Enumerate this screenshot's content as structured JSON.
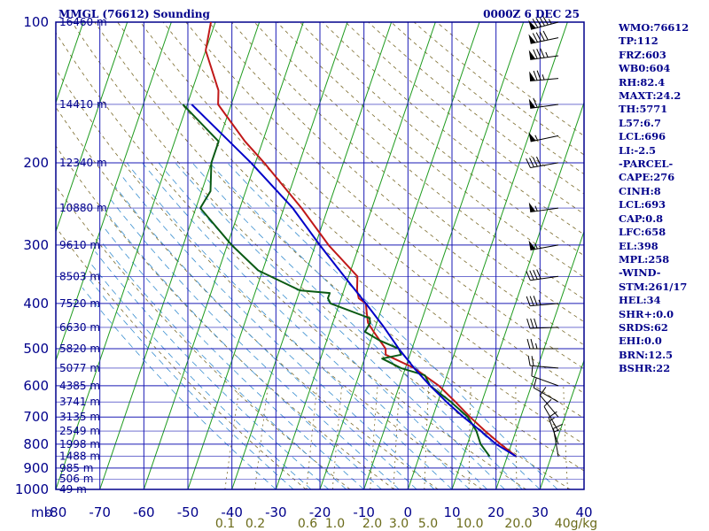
{
  "header": {
    "station": "MMGL (76612) Sounding",
    "time": "0000Z  6 DEC 25"
  },
  "indices": [
    "WMO:76612",
    "TP:112",
    "FRZ:603",
    "WB0:604",
    "RH:82.4",
    "MAXT:24.2",
    "TH:5771",
    "L57:6.7",
    "LCL:696",
    "LI:-2.5",
    "-PARCEL-",
    "CAPE:276",
    "CINH:8",
    "LCL:693",
    "CAP:0.8",
    "LFC:658",
    "EL:398",
    "MPL:258",
    "-WIND-",
    "STM:261/17",
    "HEL:34",
    "SHR+:0.0",
    "SRDS:62",
    "EHI:0.0",
    "BRN:12.5",
    "BSHR:22"
  ],
  "chart_data": {
    "type": "line",
    "title": "MMGL (76612) Sounding",
    "x_axis": {
      "unit_label": "mb",
      "ticks": [
        -80,
        -70,
        -60,
        -50,
        -40,
        -30,
        -20,
        -10,
        0,
        10,
        20,
        30,
        40
      ],
      "tick_labels": [
        "-80",
        "-70",
        "-60",
        "-50",
        "-40",
        "-30",
        "-20",
        "-10",
        "0",
        "10",
        "20",
        "30",
        "40"
      ],
      "range": [
        -80,
        40
      ]
    },
    "y_axis": {
      "scale": "log",
      "range": [
        1000,
        100
      ],
      "ticks": [
        100,
        200,
        300,
        400,
        500,
        600,
        700,
        800,
        900,
        1000
      ],
      "tick_labels": [
        "100",
        "200",
        "300",
        "400",
        "500",
        "600",
        "700",
        "800",
        "900",
        "1000"
      ]
    },
    "height_labels": [
      {
        "p": 100,
        "label": "16460 m"
      },
      {
        "p": 150,
        "label": "14410 m"
      },
      {
        "p": 200,
        "label": "12340 m"
      },
      {
        "p": 250,
        "label": "10880 m"
      },
      {
        "p": 300,
        "label": "9610 m"
      },
      {
        "p": 350,
        "label": "8503 m"
      },
      {
        "p": 400,
        "label": "7520 m"
      },
      {
        "p": 450,
        "label": "6630 m"
      },
      {
        "p": 500,
        "label": "5820 m"
      },
      {
        "p": 550,
        "label": "5077 m"
      },
      {
        "p": 600,
        "label": "4385 m"
      },
      {
        "p": 650,
        "label": "3741 m"
      },
      {
        "p": 700,
        "label": "3135 m"
      },
      {
        "p": 750,
        "label": "2549 m"
      },
      {
        "p": 800,
        "label": "1998 m"
      },
      {
        "p": 850,
        "label": "1488 m"
      },
      {
        "p": 900,
        "label": "985 m"
      },
      {
        "p": 950,
        "label": "506 m"
      },
      {
        "p": 1000,
        "label": "49 m"
      }
    ],
    "mixing_ratio_labels": [
      "0.1",
      "0.2",
      "0.6",
      "1.0",
      "2.0",
      "3.0",
      "5.0",
      "10.0",
      "20.0",
      "40g/kg"
    ],
    "series": [
      {
        "kind": "temperature",
        "color": "#c01818",
        "points": [
          [
            100,
            -81
          ],
          [
            115,
            -80
          ],
          [
            140,
            -74
          ],
          [
            150,
            -73
          ],
          [
            180,
            -64
          ],
          [
            200,
            -58
          ],
          [
            250,
            -46
          ],
          [
            300,
            -37
          ],
          [
            350,
            -28
          ],
          [
            375,
            -27
          ],
          [
            390,
            -26
          ],
          [
            400,
            -24
          ],
          [
            420,
            -23
          ],
          [
            440,
            -22
          ],
          [
            460,
            -20
          ],
          [
            500,
            -16
          ],
          [
            515,
            -15.5
          ],
          [
            550,
            -8
          ],
          [
            600,
            -1
          ],
          [
            650,
            4
          ],
          [
            700,
            8.5
          ],
          [
            750,
            13
          ],
          [
            800,
            17.5
          ],
          [
            850,
            22
          ]
        ]
      },
      {
        "kind": "dewpoint",
        "color": "#0a5a14",
        "points": [
          [
            150,
            -81
          ],
          [
            180,
            -70
          ],
          [
            200,
            -70
          ],
          [
            230,
            -68
          ],
          [
            250,
            -69
          ],
          [
            300,
            -59
          ],
          [
            340,
            -51
          ],
          [
            375,
            -40
          ],
          [
            380,
            -33
          ],
          [
            390,
            -33
          ],
          [
            400,
            -32
          ],
          [
            430,
            -22
          ],
          [
            440,
            -21.5
          ],
          [
            460,
            -22
          ],
          [
            480,
            -18
          ],
          [
            500,
            -13
          ],
          [
            515,
            -12
          ],
          [
            525,
            -16
          ],
          [
            550,
            -11
          ],
          [
            570,
            -5
          ],
          [
            600,
            -3
          ],
          [
            650,
            3
          ],
          [
            700,
            8
          ],
          [
            750,
            11
          ],
          [
            800,
            13
          ],
          [
            850,
            16
          ]
        ]
      },
      {
        "kind": "parcel",
        "color": "#0000c8",
        "points": [
          [
            150,
            -79
          ],
          [
            200,
            -61
          ],
          [
            250,
            -48
          ],
          [
            300,
            -39
          ],
          [
            350,
            -31
          ],
          [
            400,
            -24
          ],
          [
            450,
            -18
          ],
          [
            500,
            -13
          ],
          [
            550,
            -8
          ],
          [
            600,
            -3
          ],
          [
            650,
            2
          ],
          [
            700,
            7
          ],
          [
            750,
            12
          ],
          [
            800,
            16.5
          ],
          [
            850,
            22
          ]
        ]
      }
    ],
    "wind_barbs": [
      {
        "p": 100,
        "dir": 255,
        "spd": 95
      },
      {
        "p": 108,
        "dir": 258,
        "spd": 90
      },
      {
        "p": 118,
        "dir": 262,
        "spd": 85
      },
      {
        "p": 132,
        "dir": 265,
        "spd": 75
      },
      {
        "p": 150,
        "dir": 262,
        "spd": 60
      },
      {
        "p": 175,
        "dir": 258,
        "spd": 55
      },
      {
        "p": 200,
        "dir": 260,
        "spd": 40
      },
      {
        "p": 250,
        "dir": 262,
        "spd": 55
      },
      {
        "p": 300,
        "dir": 260,
        "spd": 55
      },
      {
        "p": 350,
        "dir": 262,
        "spd": 40
      },
      {
        "p": 400,
        "dir": 265,
        "spd": 35
      },
      {
        "p": 450,
        "dir": 268,
        "spd": 30
      },
      {
        "p": 500,
        "dir": 270,
        "spd": 25
      },
      {
        "p": 550,
        "dir": 275,
        "spd": 20
      },
      {
        "p": 600,
        "dir": 290,
        "spd": 10
      },
      {
        "p": 650,
        "dir": 300,
        "spd": 10
      },
      {
        "p": 700,
        "dir": 320,
        "spd": 10
      },
      {
        "p": 750,
        "dir": 330,
        "spd": 10
      },
      {
        "p": 800,
        "dir": 340,
        "spd": 15
      },
      {
        "p": 850,
        "dir": 350,
        "spd": 15
      }
    ],
    "colors": {
      "frame": "#00008b",
      "isobar": "#1a1ab5",
      "isotherm": "#1e9b1e",
      "dry_adiabat": "#7a6a2a",
      "moist_adiabat": "#3a8fd0",
      "mixing_label": "#6b6b1a",
      "wind_barb": "#000000"
    }
  }
}
